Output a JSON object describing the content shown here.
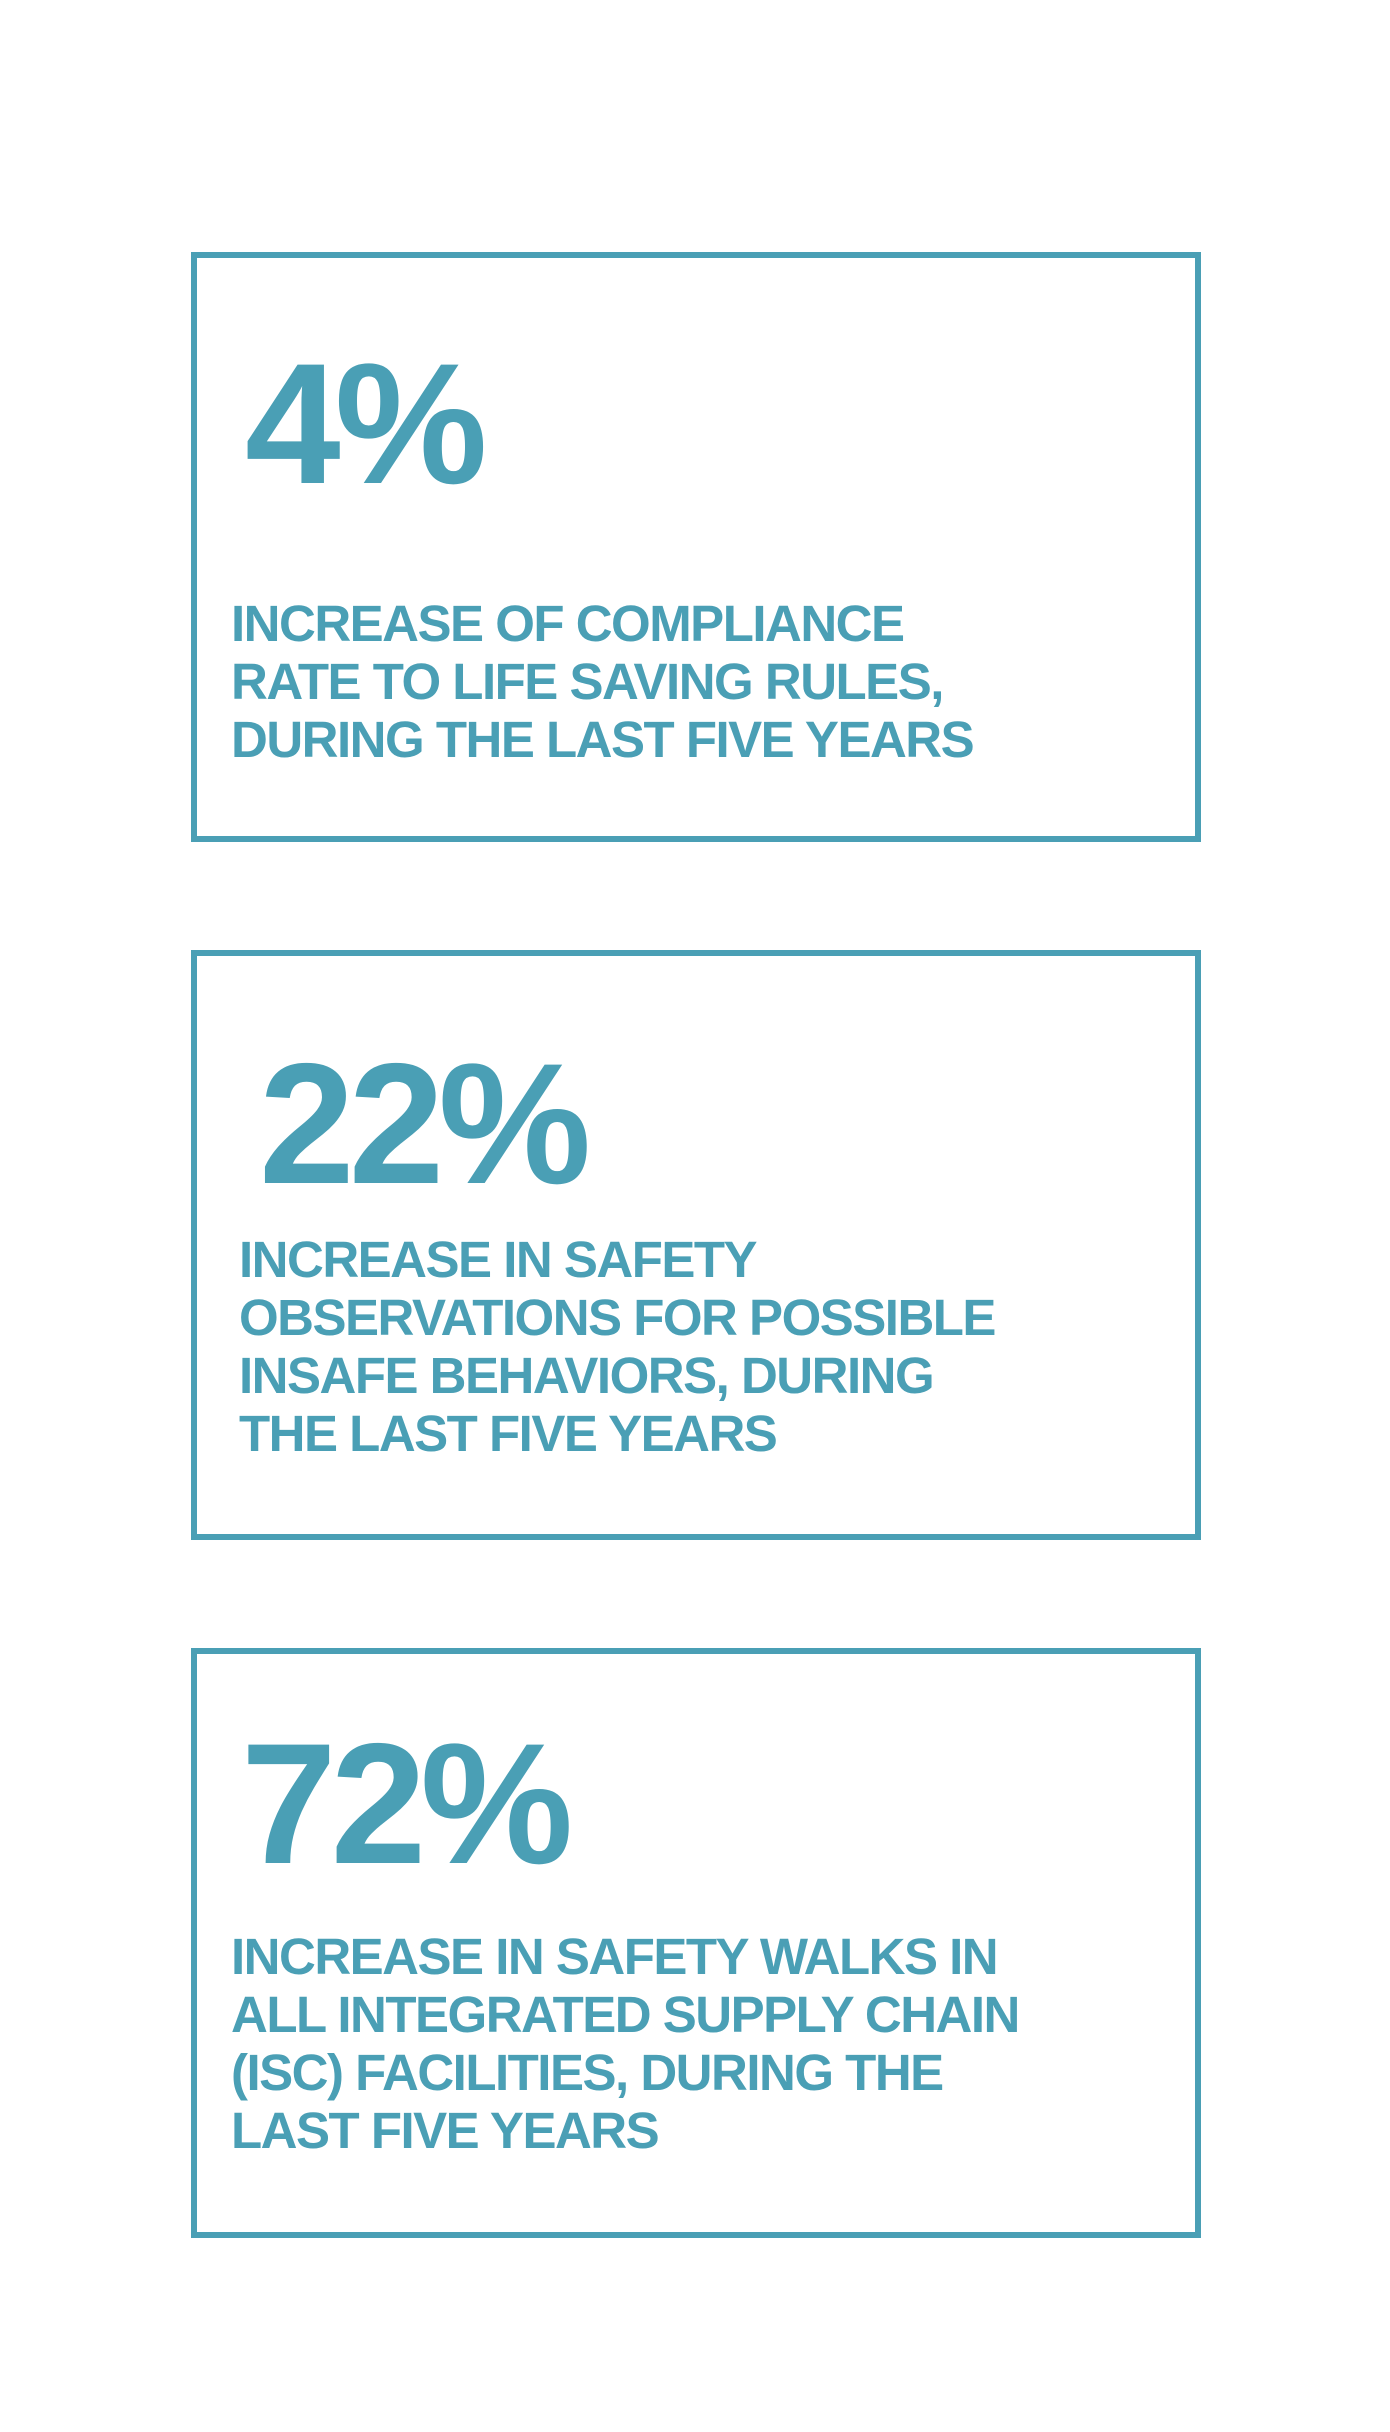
{
  "stats": [
    {
      "value": "4%",
      "description_lines": [
        "INCREASE OF COMPLIANCE",
        "RATE TO LIFE SAVING RULES,",
        "DURING THE LAST FIVE YEARS"
      ]
    },
    {
      "value": "22%",
      "description_lines": [
        "INCREASE IN SAFETY",
        "OBSERVATIONS FOR POSSIBLE",
        "INSAFE BEHAVIORS, DURING",
        "THE LAST FIVE YEARS"
      ]
    },
    {
      "value": "72%",
      "description_lines": [
        "INCREASE IN SAFETY WALKS IN",
        "ALL INTEGRATED SUPPLY CHAIN",
        "(ISC) FACILITIES, DURING THE",
        "LAST FIVE YEARS"
      ]
    }
  ],
  "colors": {
    "accent": "#4a9fb5",
    "background": "#ffffff"
  }
}
